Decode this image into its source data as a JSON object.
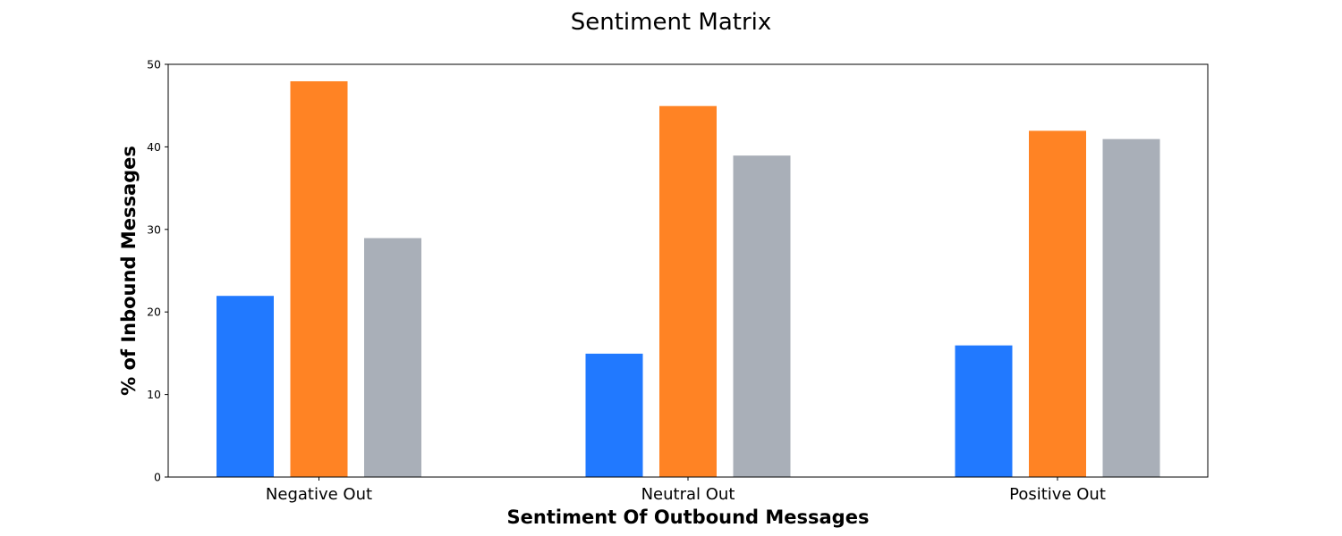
{
  "chart_data": {
    "type": "bar",
    "title": "Sentiment Matrix",
    "xlabel": "Sentiment Of Outbound Messages",
    "ylabel": "% of Inbound Messages",
    "categories": [
      "Negative Out",
      "Neutral Out",
      "Positive Out"
    ],
    "series": [
      {
        "values": [
          22,
          15,
          16
        ],
        "color": "#2179ff"
      },
      {
        "values": [
          48,
          45,
          42
        ],
        "color": "#ff8324"
      },
      {
        "values": [
          29,
          39,
          41
        ],
        "color": "#a9afb8"
      }
    ],
    "ylim": [
      0,
      50
    ],
    "yticks": [
      0,
      10,
      20,
      30,
      40,
      50
    ],
    "grid": false,
    "legend": "none"
  }
}
